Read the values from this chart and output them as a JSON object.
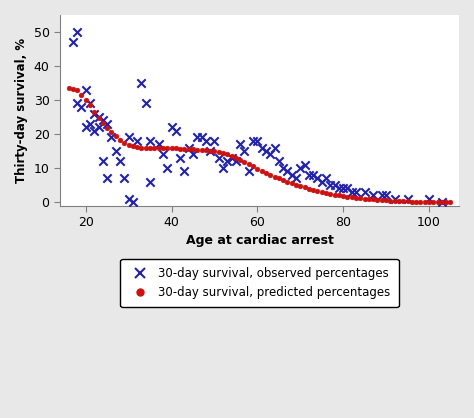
{
  "title": "",
  "xlabel": "Age at cardiac arrest",
  "ylabel": "Thirty-day survival, %",
  "xlim": [
    14,
    107
  ],
  "ylim": [
    -1,
    55
  ],
  "xticks": [
    20,
    40,
    60,
    80,
    100
  ],
  "yticks": [
    0,
    10,
    20,
    30,
    40,
    50
  ],
  "observed_x": [
    17,
    18,
    18,
    19,
    20,
    20,
    21,
    21,
    22,
    22,
    23,
    23,
    24,
    24,
    25,
    25,
    26,
    27,
    28,
    29,
    30,
    30,
    31,
    32,
    33,
    34,
    35,
    35,
    37,
    38,
    39,
    40,
    41,
    42,
    43,
    44,
    45,
    46,
    47,
    48,
    49,
    50,
    51,
    52,
    53,
    54,
    55,
    56,
    57,
    58,
    59,
    60,
    61,
    62,
    63,
    64,
    65,
    66,
    67,
    68,
    69,
    70,
    71,
    72,
    73,
    74,
    75,
    76,
    77,
    78,
    79,
    80,
    81,
    82,
    83,
    85,
    87,
    89,
    90,
    92,
    95,
    100,
    103
  ],
  "observed_y": [
    47,
    50,
    29,
    28,
    33,
    22,
    29,
    23,
    26,
    21,
    25,
    22,
    24,
    12,
    23,
    7,
    19,
    15,
    12,
    7,
    19,
    1,
    0,
    18,
    35,
    29,
    18,
    6,
    17,
    14,
    10,
    22,
    21,
    13,
    9,
    16,
    14,
    19,
    19,
    18,
    15,
    18,
    13,
    10,
    12,
    13,
    12,
    17,
    15,
    9,
    18,
    18,
    16,
    15,
    14,
    16,
    12,
    10,
    9,
    8,
    7,
    10,
    11,
    8,
    8,
    7,
    6,
    7,
    5,
    5,
    4,
    4,
    4,
    3,
    3,
    3,
    2,
    2,
    2,
    1,
    1,
    1,
    0
  ],
  "observed_color": "#2222aa",
  "observed_marker": "x",
  "observed_markersize": 6,
  "observed_linewidth": 1.5,
  "predicted_color": "#cc1111",
  "predicted_marker": "o",
  "predicted_markersize": 3.5,
  "predicted_pts": [
    [
      16,
      33.5
    ],
    [
      17,
      33.3
    ],
    [
      18,
      33.0
    ],
    [
      19,
      31.5
    ],
    [
      20,
      30.0
    ],
    [
      21,
      28.5
    ],
    [
      22,
      26.5
    ],
    [
      23,
      24.8
    ],
    [
      24,
      23.2
    ],
    [
      25,
      21.8
    ],
    [
      26,
      20.5
    ],
    [
      27,
      19.3
    ],
    [
      28,
      18.3
    ],
    [
      29,
      17.5
    ],
    [
      30,
      16.9
    ],
    [
      31,
      16.5
    ],
    [
      32,
      16.2
    ],
    [
      33,
      16.0
    ],
    [
      34,
      15.9
    ],
    [
      35,
      15.8
    ],
    [
      36,
      15.8
    ],
    [
      37,
      15.8
    ],
    [
      38,
      15.8
    ],
    [
      39,
      15.8
    ],
    [
      40,
      15.8
    ],
    [
      41,
      15.8
    ],
    [
      42,
      15.7
    ],
    [
      43,
      15.7
    ],
    [
      44,
      15.6
    ],
    [
      45,
      15.5
    ],
    [
      46,
      15.4
    ],
    [
      47,
      15.3
    ],
    [
      48,
      15.2
    ],
    [
      49,
      15.1
    ],
    [
      50,
      14.9
    ],
    [
      51,
      14.7
    ],
    [
      52,
      14.4
    ],
    [
      53,
      14.0
    ],
    [
      54,
      13.5
    ],
    [
      55,
      13.0
    ],
    [
      56,
      12.4
    ],
    [
      57,
      11.8
    ],
    [
      58,
      11.1
    ],
    [
      59,
      10.5
    ],
    [
      60,
      9.8
    ],
    [
      61,
      9.2
    ],
    [
      62,
      8.6
    ],
    [
      63,
      8.0
    ],
    [
      64,
      7.5
    ],
    [
      65,
      7.0
    ],
    [
      66,
      6.5
    ],
    [
      67,
      6.0
    ],
    [
      68,
      5.5
    ],
    [
      69,
      5.1
    ],
    [
      70,
      4.7
    ],
    [
      71,
      4.3
    ],
    [
      72,
      3.9
    ],
    [
      73,
      3.6
    ],
    [
      74,
      3.3
    ],
    [
      75,
      3.0
    ],
    [
      76,
      2.7
    ],
    [
      77,
      2.5
    ],
    [
      78,
      2.2
    ],
    [
      79,
      2.0
    ],
    [
      80,
      1.8
    ],
    [
      81,
      1.6
    ],
    [
      82,
      1.4
    ],
    [
      83,
      1.3
    ],
    [
      84,
      1.1
    ],
    [
      85,
      1.0
    ],
    [
      86,
      0.9
    ],
    [
      87,
      0.8
    ],
    [
      88,
      0.7
    ],
    [
      89,
      0.6
    ],
    [
      90,
      0.5
    ],
    [
      91,
      0.4
    ],
    [
      92,
      0.35
    ],
    [
      93,
      0.3
    ],
    [
      94,
      0.25
    ],
    [
      95,
      0.2
    ],
    [
      96,
      0.15
    ],
    [
      97,
      0.12
    ],
    [
      98,
      0.1
    ],
    [
      99,
      0.08
    ],
    [
      100,
      0.06
    ],
    [
      101,
      0.04
    ],
    [
      102,
      0.03
    ],
    [
      103,
      0.02
    ],
    [
      104,
      0.01
    ],
    [
      105,
      0.0
    ]
  ],
  "legend_x_label": "30-day survival, observed percentages",
  "legend_pred_label": "30-day survival, predicted percentages",
  "figure_facecolor": "#e8e8e8",
  "plot_background": "#ffffff"
}
